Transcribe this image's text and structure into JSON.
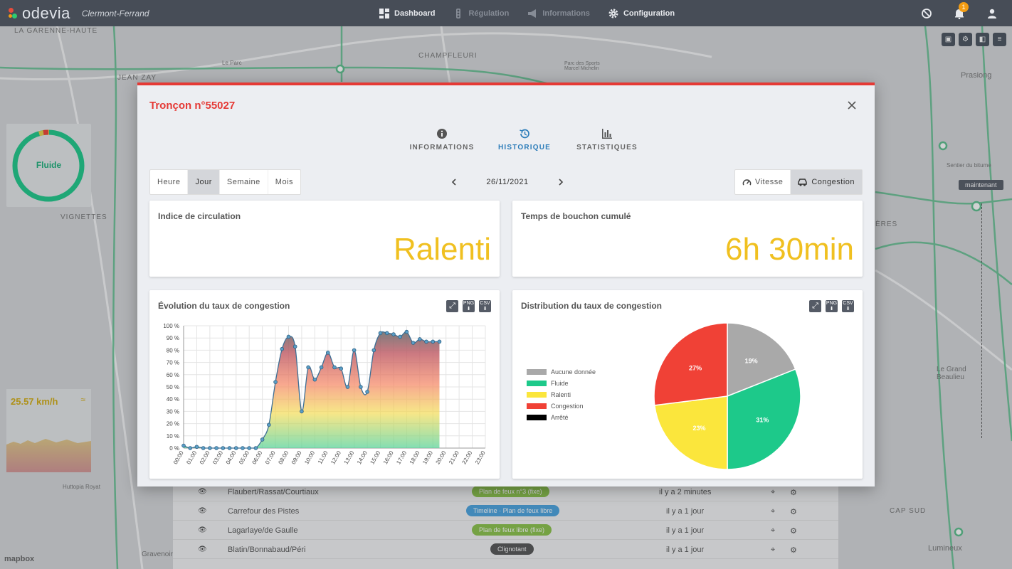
{
  "app": {
    "logo": "odevia",
    "city": "Clermont-Ferrand"
  },
  "nav": [
    {
      "label": "Dashboard",
      "icon": "dashboard-icon",
      "active": true
    },
    {
      "label": "Régulation",
      "icon": "traffic-light-icon",
      "active": false
    },
    {
      "label": "Informations",
      "icon": "megaphone-icon",
      "active": false
    },
    {
      "label": "Configuration",
      "icon": "gear-icon",
      "active": true
    }
  ],
  "notifications": {
    "count": "1"
  },
  "map": {
    "labels": [
      "LA GARENNE-HAUTE",
      "JEAN ZAY",
      "CHAMPFLEURI",
      "Le Parc",
      "Parc des Sports Marcel Michelin",
      "Prasiong",
      "Sentier du bitume",
      "Le Grand Beaulieu",
      "CAP SUD",
      "Lumineux",
      "Huttopia Royat",
      "Gravenoire",
      "VIGNETTES",
      "ÈRES"
    ],
    "maintenant": "maintenant",
    "attribution": "mapbox"
  },
  "widget_fluide": {
    "label": "Fluide"
  },
  "widget_speed": {
    "value": "25.57 km/h",
    "sym": "≈"
  },
  "bg_table": [
    {
      "name": "Flaubert/Rassat/Courtiaux",
      "plan": "Plan de feux n°3 (fixe)",
      "plan_color": "#8bc34a",
      "time": "il y a 2 minutes"
    },
    {
      "name": "Carrefour des Pistes",
      "plan": "Timeline · Plan de feux libre",
      "plan_color": "#4aa3df",
      "time": "il y a 1 jour"
    },
    {
      "name": "Lagarlaye/de Gaulle",
      "plan": "Plan de feux libre (fixe)",
      "plan_color": "#8bc34a",
      "time": "il y a 1 jour"
    },
    {
      "name": "Blatin/Bonnabaud/Péri",
      "plan": "Clignotant",
      "plan_color": "#555555",
      "time": "il y a 1 jour"
    }
  ],
  "modal": {
    "title": "Tronçon n°55027",
    "tabs": [
      {
        "label": "INFORMATIONS",
        "icon": "info-icon",
        "active": false
      },
      {
        "label": "HISTORIQUE",
        "icon": "history-icon",
        "active": true
      },
      {
        "label": "STATISTIQUES",
        "icon": "bar-chart-icon",
        "active": false
      }
    ],
    "periods": [
      "Heure",
      "Jour",
      "Semaine",
      "Mois"
    ],
    "period_selected": "Jour",
    "date": "26/11/2021",
    "modes": [
      {
        "label": "Vitesse",
        "icon": "speedometer-icon"
      },
      {
        "label": "Congestion",
        "icon": "car-icon"
      }
    ],
    "mode_selected": "Congestion",
    "card_indice": {
      "title": "Indice de circulation",
      "value": "Ralenti"
    },
    "card_bouchon": {
      "title": "Temps de bouchon cumulé",
      "value": "6h 30min"
    },
    "card_evolution": {
      "title": "Évolution du taux de congestion"
    },
    "card_distribution": {
      "title": "Distribution du taux de congestion"
    },
    "btn_png": "PNG",
    "btn_csv": "CSV"
  },
  "chart_data": [
    {
      "type": "area",
      "title": "Évolution du taux de congestion",
      "y_ticks": [
        "0 %",
        "10 %",
        "20 %",
        "30 %",
        "40 %",
        "50 %",
        "60 %",
        "70 %",
        "80 %",
        "90 %",
        "100 %"
      ],
      "ylim": [
        0,
        100
      ],
      "x_ticks": [
        "00:00",
        "01:00",
        "02:00",
        "03:00",
        "04:00",
        "05:00",
        "06:00",
        "07:00",
        "08:00",
        "09:00",
        "10:00",
        "11:00",
        "12:00",
        "13:00",
        "14:00",
        "15:00",
        "16:00",
        "17:00",
        "18:00",
        "19:00",
        "20:00",
        "21:00",
        "22:00",
        "23:00"
      ],
      "x": [
        0,
        0.5,
        1,
        1.5,
        2,
        2.5,
        3,
        3.5,
        4,
        4.5,
        5,
        5.5,
        6,
        6.5,
        7,
        7.5,
        8,
        8.5,
        9,
        9.5,
        10,
        10.5,
        11,
        11.5,
        12,
        12.5,
        13,
        13.5,
        14,
        14.5,
        15,
        15.5,
        16,
        16.5,
        17,
        17.5,
        18,
        18.5,
        19,
        19.5
      ],
      "values": [
        2,
        0,
        1,
        0,
        0,
        0,
        0,
        0,
        0,
        0,
        0,
        0,
        7,
        19,
        54,
        81,
        91,
        83,
        30,
        66,
        56,
        66,
        78,
        66,
        65,
        50,
        80,
        50,
        46,
        80,
        94,
        94,
        93,
        91,
        95,
        86,
        89,
        87,
        87,
        87
      ],
      "grid": true
    },
    {
      "type": "pie",
      "title": "Distribution du taux de congestion",
      "legend": [
        {
          "name": "Aucune donnée",
          "color": "#a9a9a9"
        },
        {
          "name": "Fluide",
          "color": "#1dc98a"
        },
        {
          "name": "Ralenti",
          "color": "#fbe63c"
        },
        {
          "name": "Congestion",
          "color": "#f04136"
        },
        {
          "name": "Arrêté",
          "color": "#000000"
        }
      ],
      "slices": [
        {
          "name": "Aucune donnée",
          "value": 19,
          "label": "19%",
          "color": "#a9a9a9"
        },
        {
          "name": "Fluide",
          "value": 31,
          "label": "31%",
          "color": "#1dc98a"
        },
        {
          "name": "Ralenti",
          "value": 23,
          "label": "23%",
          "color": "#fbe63c"
        },
        {
          "name": "Congestion",
          "value": 27,
          "label": "27%",
          "color": "#f04136"
        }
      ]
    }
  ]
}
